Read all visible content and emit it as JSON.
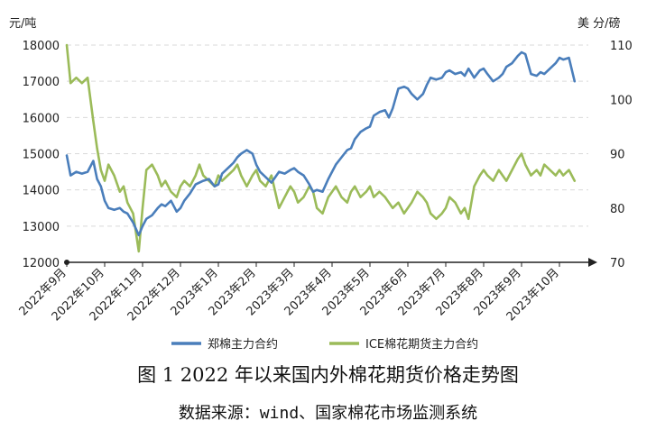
{
  "caption": {
    "title": "图 1   2022 年以来国内外棉花期货价格走势图",
    "source": "数据来源：wind、国家棉花市场监测系统"
  },
  "chart_data": {
    "type": "line",
    "left_unit": "元/吨",
    "right_unit": "美 分/磅",
    "left_ylim": [
      12000,
      18000
    ],
    "left_ticks": [
      12000,
      13000,
      14000,
      15000,
      16000,
      17000,
      18000
    ],
    "right_ylim": [
      70,
      110
    ],
    "right_ticks": [
      70,
      80,
      90,
      100,
      110
    ],
    "x_ticks": [
      "2022年9月",
      "2022年10月",
      "2022年11月",
      "2022年12月",
      "2023年1月",
      "2023年2月",
      "2023年3月",
      "2023年4月",
      "2023年5月",
      "2023年6月",
      "2023年7月",
      "2023年8月",
      "2023年9月",
      "2023年10月"
    ],
    "grid": true,
    "legend_position": "bottom",
    "colors": {
      "zce": "#4a7ebb",
      "ice": "#9bbb59",
      "grid": "#d9d9d9",
      "axis": "#222222"
    },
    "series": [
      {
        "name": "郑棉主力合约",
        "axis": "left",
        "x": [
          0,
          0.1,
          0.25,
          0.4,
          0.55,
          0.7,
          0.8,
          0.9,
          1.0,
          1.1,
          1.25,
          1.4,
          1.5,
          1.6,
          1.75,
          1.9,
          2.0,
          2.1,
          2.25,
          2.4,
          2.5,
          2.6,
          2.75,
          2.9,
          3.0,
          3.1,
          3.25,
          3.4,
          3.5,
          3.6,
          3.75,
          3.9,
          4.0,
          4.1,
          4.25,
          4.4,
          4.5,
          4.6,
          4.75,
          4.9,
          5.0,
          5.1,
          5.25,
          5.4,
          5.5,
          5.6,
          5.75,
          5.9,
          6.0,
          6.1,
          6.25,
          6.4,
          6.5,
          6.6,
          6.75,
          6.9,
          7.0,
          7.1,
          7.25,
          7.4,
          7.5,
          7.6,
          7.75,
          7.9,
          8.0,
          8.1,
          8.25,
          8.4,
          8.5,
          8.6,
          8.75,
          8.9,
          9.0,
          9.1,
          9.25,
          9.4,
          9.5,
          9.6,
          9.75,
          9.9,
          10.0,
          10.1,
          10.25,
          10.4,
          10.5,
          10.6,
          10.75,
          10.9,
          11.0,
          11.1,
          11.25,
          11.4,
          11.5,
          11.6,
          11.75,
          11.9,
          12.0,
          12.1,
          12.25,
          12.4,
          12.5,
          12.6,
          12.75,
          12.9,
          13.0,
          13.1,
          13.25,
          13.4
        ],
        "values": [
          14950,
          14400,
          14500,
          14450,
          14500,
          14800,
          14300,
          14100,
          13700,
          13500,
          13450,
          13500,
          13400,
          13350,
          13100,
          12750,
          13000,
          13200,
          13300,
          13500,
          13600,
          13550,
          13700,
          13400,
          13500,
          13700,
          13900,
          14150,
          14200,
          14250,
          14300,
          14100,
          14150,
          14450,
          14600,
          14750,
          14900,
          15000,
          15100,
          15000,
          14700,
          14500,
          14350,
          14200,
          14350,
          14500,
          14450,
          14550,
          14600,
          14500,
          14400,
          14150,
          13950,
          14000,
          13950,
          14300,
          14500,
          14700,
          14900,
          15100,
          15150,
          15400,
          15600,
          15700,
          15750,
          16050,
          16150,
          16200,
          16000,
          16250,
          16800,
          16850,
          16800,
          16650,
          16500,
          16650,
          16900,
          17100,
          17050,
          17100,
          17250,
          17300,
          17200,
          17250,
          17150,
          17350,
          17100,
          17300,
          17350,
          17200,
          17000,
          17100,
          17200,
          17400,
          17500,
          17700,
          17800,
          17750,
          17200,
          17150,
          17250,
          17200,
          17350,
          17500,
          17650,
          17600,
          17650,
          17000
        ]
      },
      {
        "name": "ICE棉花期货主力合约",
        "axis": "right",
        "x": [
          0,
          0.1,
          0.25,
          0.4,
          0.55,
          0.7,
          0.8,
          0.9,
          1.0,
          1.1,
          1.25,
          1.4,
          1.5,
          1.6,
          1.75,
          1.9,
          2.0,
          2.1,
          2.25,
          2.4,
          2.5,
          2.6,
          2.75,
          2.9,
          3.0,
          3.1,
          3.25,
          3.4,
          3.5,
          3.6,
          3.75,
          3.9,
          4.0,
          4.1,
          4.25,
          4.4,
          4.5,
          4.6,
          4.75,
          4.9,
          5.0,
          5.1,
          5.25,
          5.4,
          5.5,
          5.6,
          5.75,
          5.9,
          6.0,
          6.1,
          6.25,
          6.4,
          6.5,
          6.6,
          6.75,
          6.9,
          7.0,
          7.1,
          7.25,
          7.4,
          7.5,
          7.6,
          7.75,
          7.9,
          8.0,
          8.1,
          8.25,
          8.4,
          8.5,
          8.6,
          8.75,
          8.9,
          9.0,
          9.1,
          9.25,
          9.4,
          9.5,
          9.6,
          9.75,
          9.9,
          10.0,
          10.1,
          10.25,
          10.4,
          10.5,
          10.6,
          10.75,
          10.9,
          11.0,
          11.1,
          11.25,
          11.4,
          11.5,
          11.6,
          11.75,
          11.9,
          12.0,
          12.1,
          12.25,
          12.4,
          12.5,
          12.6,
          12.75,
          12.9,
          13.0,
          13.1,
          13.25,
          13.4
        ],
        "values": [
          110,
          103,
          104,
          103,
          104,
          96,
          91,
          87,
          85,
          88,
          86,
          83,
          84,
          81,
          79,
          72,
          80,
          87,
          88,
          86,
          84,
          85,
          83,
          82,
          84,
          85,
          84,
          86,
          88,
          86,
          85,
          84,
          86,
          85,
          86,
          87,
          88,
          86,
          84,
          86,
          87,
          85,
          84,
          86,
          83,
          80,
          82,
          84,
          83,
          81,
          82,
          84,
          83,
          80,
          79,
          82,
          83,
          84,
          82,
          81,
          83,
          84,
          82,
          83,
          84,
          82,
          83,
          82,
          81,
          80,
          81,
          79,
          80,
          81,
          83,
          82,
          81,
          79,
          78,
          79,
          80,
          82,
          81,
          79,
          80,
          78,
          84,
          86,
          87,
          86,
          85,
          87,
          86,
          85,
          87,
          89,
          90,
          88,
          86,
          87,
          86,
          88,
          87,
          86,
          87,
          86,
          87,
          85
        ]
      }
    ]
  }
}
